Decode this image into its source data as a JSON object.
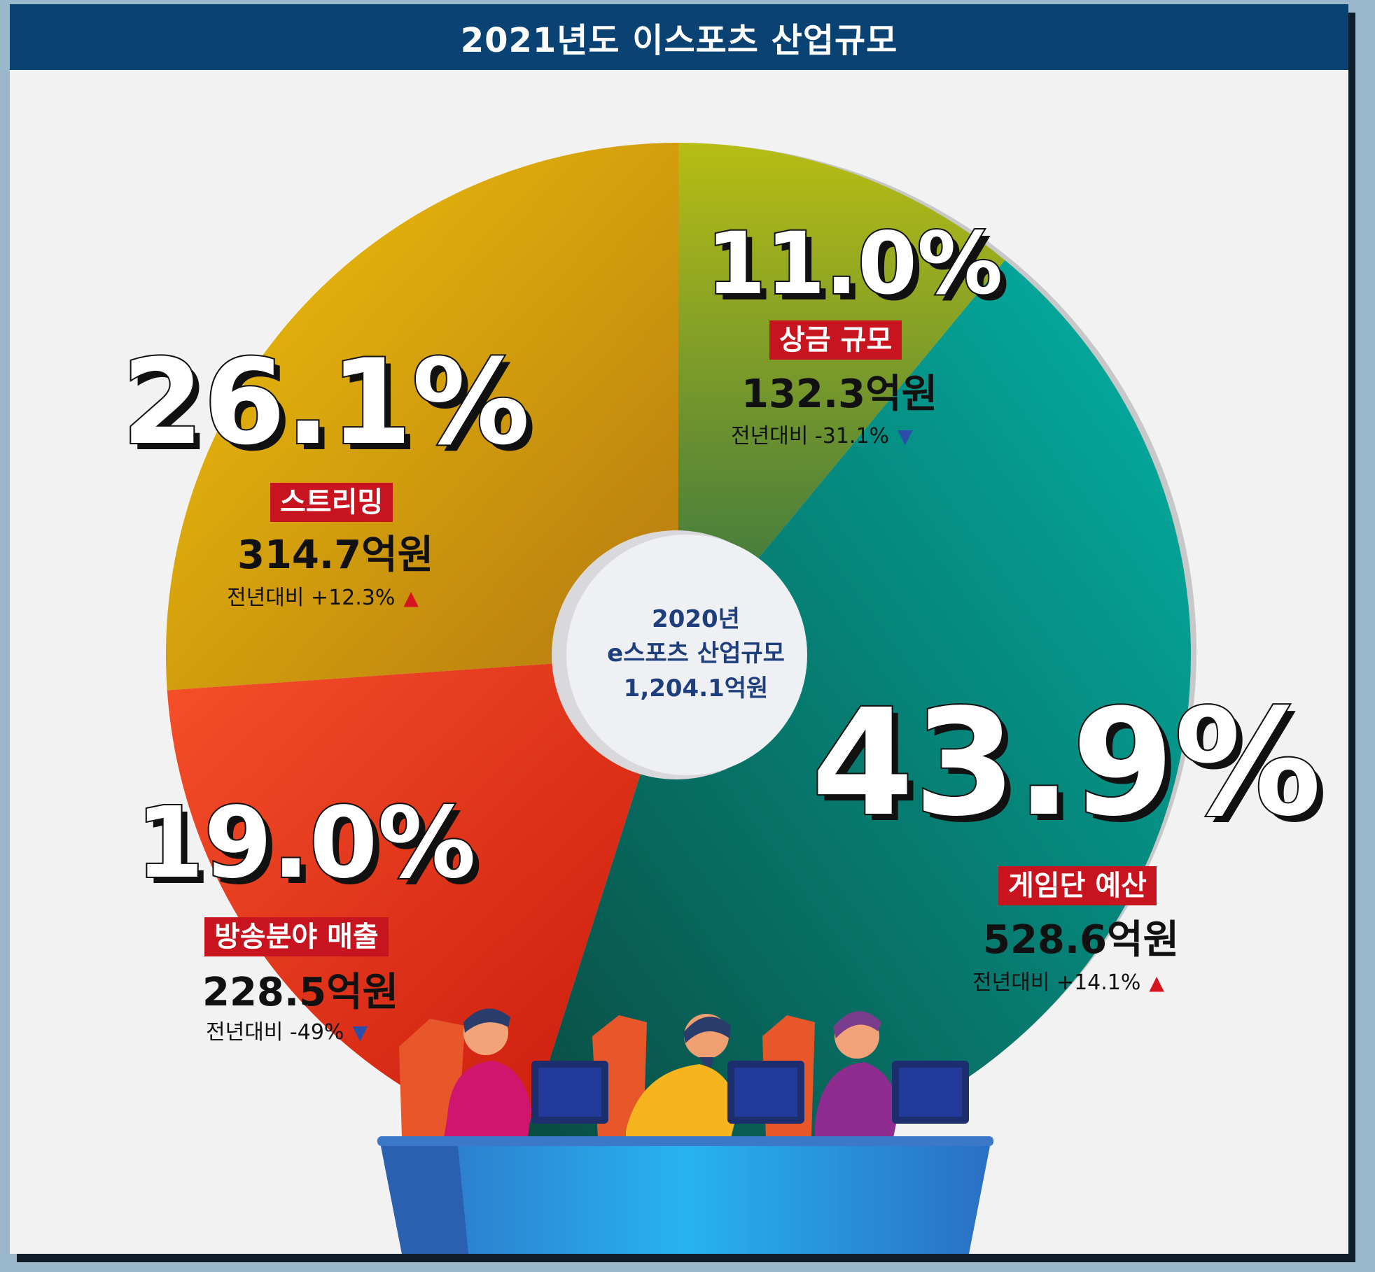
{
  "title": "2021년도 이스포츠 산업규모",
  "center": {
    "line1": "2020년",
    "line2": "e스포츠 산업규모",
    "line3": "1,204.1억원"
  },
  "chart_data": {
    "type": "pie",
    "title": "2021년도 이스포츠 산업규모",
    "slices": [
      {
        "label": "상금 규모",
        "percent_label": "11.0%",
        "value": 11.0,
        "amount": "132.3억원",
        "yoy": "전년대비 -31.1%",
        "trend": "down",
        "color": "#a5b21a"
      },
      {
        "label": "게임단 예산",
        "percent_label": "43.9%",
        "value": 43.9,
        "amount": "528.6억원",
        "yoy": "전년대비 +14.1%",
        "trend": "up",
        "color": "#07a89a"
      },
      {
        "label": "방송분야 매출",
        "percent_label": "19.0%",
        "value": 19.0,
        "amount": "228.5억원",
        "yoy": "전년대비 -49%",
        "trend": "down",
        "color": "#ef4a22"
      },
      {
        "label": "스트리밍",
        "percent_label": "26.1%",
        "value": 26.1,
        "amount": "314.7억원",
        "yoy": "전년대비 +12.3%",
        "trend": "up",
        "color": "#e7b20c"
      }
    ]
  }
}
